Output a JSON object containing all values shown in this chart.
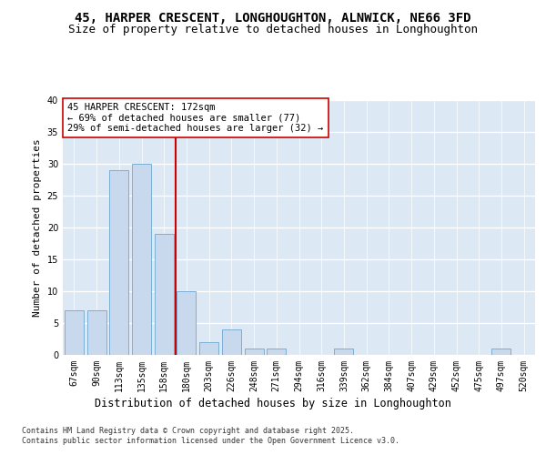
{
  "title_line1": "45, HARPER CRESCENT, LONGHOUGHTON, ALNWICK, NE66 3FD",
  "title_line2": "Size of property relative to detached houses in Longhoughton",
  "categories": [
    "67sqm",
    "90sqm",
    "113sqm",
    "135sqm",
    "158sqm",
    "180sqm",
    "203sqm",
    "226sqm",
    "248sqm",
    "271sqm",
    "294sqm",
    "316sqm",
    "339sqm",
    "362sqm",
    "384sqm",
    "407sqm",
    "429sqm",
    "452sqm",
    "475sqm",
    "497sqm",
    "520sqm"
  ],
  "values": [
    7,
    7,
    29,
    30,
    19,
    10,
    2,
    4,
    1,
    1,
    0,
    0,
    1,
    0,
    0,
    0,
    0,
    0,
    0,
    1,
    0
  ],
  "bar_color": "#c8d8ed",
  "bar_edge_color": "#7bafd4",
  "vline_x": 4.5,
  "vline_color": "#cc0000",
  "ylabel": "Number of detached properties",
  "xlabel": "Distribution of detached houses by size in Longhoughton",
  "ylim": [
    0,
    40
  ],
  "yticks": [
    0,
    5,
    10,
    15,
    20,
    25,
    30,
    35,
    40
  ],
  "annotation_text": "45 HARPER CRESCENT: 172sqm\n← 69% of detached houses are smaller (77)\n29% of semi-detached houses are larger (32) →",
  "annotation_box_color": "#ffffff",
  "annotation_box_edge": "#cc0000",
  "fig_bg_color": "#ffffff",
  "plot_bg_color": "#dde8f5",
  "grid_color": "#ffffff",
  "footer_line1": "Contains HM Land Registry data © Crown copyright and database right 2025.",
  "footer_line2": "Contains public sector information licensed under the Open Government Licence v3.0.",
  "title_fontsize": 10,
  "subtitle_fontsize": 9,
  "tick_fontsize": 7,
  "ylabel_fontsize": 8,
  "xlabel_fontsize": 8.5,
  "annotation_fontsize": 7.5,
  "footer_fontsize": 6
}
